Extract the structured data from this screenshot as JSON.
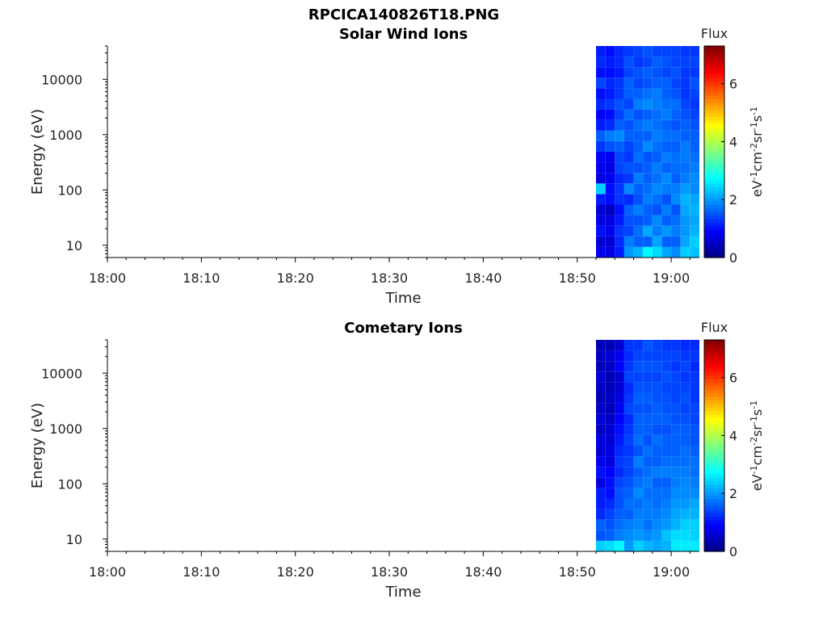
{
  "figure": {
    "title": "RPCICA140826T18.PNG"
  },
  "colors": {
    "background": "#ffffff",
    "axis": "#000000",
    "colormap": "jet",
    "colormap_stops": [
      "#00007f",
      "#0000ff",
      "#007fff",
      "#00ffff",
      "#7fff7f",
      "#ffff00",
      "#ff7f00",
      "#ff0000",
      "#7f0000"
    ]
  },
  "chart_data": [
    {
      "type": "heatmap",
      "title": "Solar Wind Ions",
      "xlabel": "Time",
      "ylabel": "Energy (eV)",
      "y_scale": "log",
      "xlim": [
        "18:00",
        "19:03"
      ],
      "ylim": [
        6,
        40000
      ],
      "x_ticks": [
        "18:00",
        "18:10",
        "18:20",
        "18:30",
        "18:40",
        "18:50",
        "19:00"
      ],
      "y_ticks": [
        "10",
        "100",
        "1000",
        "10000"
      ],
      "colorbar": {
        "title": "Flux",
        "label": "eV-1cm-2sr-1s-1",
        "ticks": [
          "0",
          "2",
          "4",
          "6"
        ],
        "range": [
          0,
          7.3
        ]
      },
      "data_time_range": [
        "18:52",
        "19:03"
      ],
      "columns": [
        {
          "time": "18:52",
          "flux": [
            0.8,
            0.6,
            1.0,
            0.7,
            0.6,
            1.1,
            2.4,
            0.7,
            0.8,
            0.9,
            1.3,
            1.6,
            1.1,
            0.9,
            1.2,
            1.0,
            1.4,
            1.0,
            1.2,
            1.1
          ]
        },
        {
          "time": "18:53",
          "flux": [
            0.7,
            0.6,
            0.8,
            0.7,
            0.5,
            1.0,
            1.0,
            0.8,
            0.7,
            0.8,
            1.5,
            1.8,
            1.2,
            1.0,
            1.3,
            1.1,
            1.2,
            1.0,
            1.1,
            1.0
          ]
        },
        {
          "time": "18:54",
          "flux": [
            1.1,
            1.2,
            1.3,
            1.1,
            1.0,
            1.3,
            1.3,
            1.2,
            1.4,
            1.4,
            1.6,
            1.9,
            1.6,
            1.4,
            1.5,
            1.3,
            1.3,
            1.1,
            1.2,
            1.2
          ]
        },
        {
          "time": "18:55",
          "flux": [
            2.0,
            1.8,
            1.4,
            1.5,
            1.6,
            1.2,
            1.9,
            1.3,
            1.5,
            1.3,
            1.4,
            1.6,
            1.5,
            1.7,
            1.4,
            1.6,
            1.6,
            1.4,
            1.5,
            1.3
          ]
        },
        {
          "time": "18:56",
          "flux": [
            2.2,
            1.6,
            1.7,
            1.5,
            1.8,
            1.5,
            1.6,
            1.8,
            1.5,
            1.7,
            1.6,
            1.6,
            1.7,
            1.5,
            1.8,
            1.6,
            1.4,
            1.5,
            1.3,
            1.4
          ]
        },
        {
          "time": "18:57",
          "flux": [
            2.7,
            1.6,
            2.1,
            1.6,
            1.6,
            1.8,
            1.7,
            1.6,
            1.6,
            1.5,
            1.9,
            1.6,
            1.8,
            1.6,
            1.9,
            1.7,
            1.5,
            1.6,
            1.4,
            1.5
          ]
        },
        {
          "time": "18:58",
          "flux": [
            2.5,
            2.1,
            1.8,
            1.9,
            1.5,
            1.7,
            1.9,
            1.7,
            1.8,
            1.6,
            1.7,
            1.8,
            1.7,
            1.7,
            1.8,
            1.8,
            1.6,
            1.5,
            1.6,
            1.4
          ]
        },
        {
          "time": "18:59",
          "flux": [
            2.1,
            1.6,
            2.0,
            1.6,
            1.8,
            1.5,
            1.8,
            1.9,
            1.6,
            1.8,
            1.6,
            1.7,
            1.6,
            1.8,
            1.7,
            1.6,
            1.6,
            1.4,
            1.5,
            1.4
          ]
        },
        {
          "time": "19:00",
          "flux": [
            1.9,
            1.6,
            1.8,
            1.7,
            1.5,
            1.9,
            1.8,
            1.6,
            1.7,
            1.7,
            1.6,
            1.7,
            1.5,
            1.6,
            1.7,
            1.5,
            1.4,
            1.5,
            1.4,
            1.4
          ]
        },
        {
          "time": "19:01",
          "flux": [
            2.4,
            2.1,
            2.0,
            2.0,
            2.1,
            2.2,
            2.0,
            1.8,
            1.7,
            1.8,
            1.8,
            1.6,
            1.6,
            1.5,
            1.4,
            1.3,
            1.3,
            1.3,
            1.4,
            1.3
          ]
        },
        {
          "time": "19:02",
          "flux": [
            2.3,
            2.4,
            2.2,
            2.1,
            2.2,
            2.1,
            1.9,
            1.9,
            1.8,
            1.7,
            1.6,
            1.6,
            1.5,
            1.4,
            1.3,
            1.4,
            1.5,
            1.3,
            1.4,
            1.3
          ]
        }
      ]
    },
    {
      "type": "heatmap",
      "title": "Cometary Ions",
      "xlabel": "Time",
      "ylabel": "Energy (eV)",
      "y_scale": "log",
      "xlim": [
        "18:00",
        "19:03"
      ],
      "ylim": [
        6,
        40000
      ],
      "x_ticks": [
        "18:00",
        "18:10",
        "18:20",
        "18:30",
        "18:40",
        "18:50",
        "19:00"
      ],
      "y_ticks": [
        "10",
        "100",
        "1000",
        "10000"
      ],
      "colorbar": {
        "title": "Flux",
        "label": "eV-1cm-2sr-1s-1",
        "ticks": [
          "0",
          "2",
          "4",
          "6"
        ],
        "range": [
          0,
          7.3
        ]
      },
      "data_time_range": [
        "18:52",
        "19:03"
      ],
      "columns": [
        {
          "time": "18:52",
          "flux": [
            2.4,
            1.5,
            1.6,
            1.2,
            1.1,
            1.1,
            0.7,
            1.0,
            0.8,
            0.6,
            0.7,
            0.5,
            0.6,
            0.5,
            0.4,
            0.5,
            0.6,
            0.4,
            0.5,
            0.4
          ]
        },
        {
          "time": "18:53",
          "flux": [
            2.5,
            1.6,
            1.5,
            1.4,
            1.2,
            1.0,
            1.0,
            0.9,
            0.7,
            0.7,
            0.6,
            0.6,
            0.5,
            0.4,
            0.5,
            0.4,
            0.4,
            0.5,
            0.6,
            0.4
          ]
        },
        {
          "time": "18:54",
          "flux": [
            2.7,
            1.8,
            1.7,
            1.6,
            1.5,
            1.5,
            1.4,
            1.2,
            1.3,
            1.2,
            1.1,
            1.0,
            0.9,
            0.8,
            0.7,
            0.6,
            0.6,
            0.9,
            0.8,
            0.6
          ]
        },
        {
          "time": "18:55",
          "flux": [
            2.0,
            1.9,
            1.8,
            1.6,
            1.7,
            1.6,
            1.5,
            1.4,
            1.4,
            1.3,
            1.4,
            1.3,
            1.2,
            1.4,
            1.3,
            1.2,
            1.4,
            1.3,
            1.2,
            1.3
          ]
        },
        {
          "time": "18:56",
          "flux": [
            2.4,
            2.0,
            1.9,
            1.8,
            1.7,
            1.9,
            1.7,
            1.6,
            1.8,
            1.5,
            1.7,
            1.6,
            1.6,
            1.5,
            1.6,
            1.5,
            1.4,
            1.5,
            1.4,
            1.3
          ]
        },
        {
          "time": "18:57",
          "flux": [
            2.2,
            1.9,
            1.7,
            1.8,
            1.8,
            1.7,
            1.8,
            1.7,
            1.6,
            1.7,
            1.5,
            1.6,
            1.6,
            1.5,
            1.6,
            1.5,
            1.4,
            1.5,
            1.4,
            1.5
          ]
        },
        {
          "time": "18:58",
          "flux": [
            2.1,
            2.0,
            1.9,
            1.8,
            1.7,
            1.7,
            1.6,
            1.8,
            1.6,
            1.6,
            1.7,
            1.5,
            1.6,
            1.6,
            1.5,
            1.5,
            1.4,
            1.5,
            1.4,
            1.4
          ]
        },
        {
          "time": "18:59",
          "flux": [
            2.2,
            2.3,
            2.0,
            1.9,
            1.8,
            1.7,
            1.6,
            1.8,
            1.7,
            1.6,
            1.6,
            1.5,
            1.6,
            1.5,
            1.5,
            1.4,
            1.5,
            1.4,
            1.4,
            1.3
          ]
        },
        {
          "time": "19:00",
          "flux": [
            2.6,
            2.5,
            2.2,
            2.1,
            2.0,
            1.9,
            1.8,
            1.8,
            1.7,
            1.6,
            1.6,
            1.6,
            1.5,
            1.5,
            1.4,
            1.4,
            1.4,
            1.3,
            1.4,
            1.3
          ]
        },
        {
          "time": "19:01",
          "flux": [
            2.6,
            2.5,
            2.4,
            2.2,
            2.0,
            1.9,
            1.9,
            1.8,
            1.7,
            1.7,
            1.6,
            1.6,
            1.5,
            1.4,
            1.5,
            1.4,
            1.3,
            1.4,
            1.3,
            1.2
          ]
        },
        {
          "time": "19:02",
          "flux": [
            2.6,
            2.4,
            2.4,
            2.2,
            2.1,
            1.9,
            1.8,
            1.7,
            1.7,
            1.6,
            1.5,
            1.5,
            1.4,
            1.4,
            1.3,
            1.3,
            1.3,
            1.2,
            1.3,
            1.2
          ]
        }
      ]
    }
  ]
}
